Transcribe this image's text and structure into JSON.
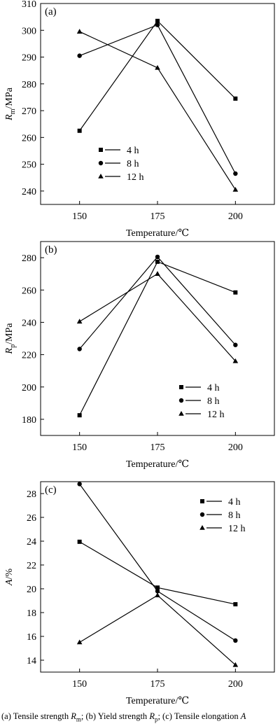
{
  "caption": {
    "a_text": "(a) Tensile strength ",
    "a_sym": "R",
    "a_sub": "m",
    "b_text": "; (b) Yield  strength ",
    "b_sym": "R",
    "b_sub": "p",
    "c_text": "; (c) Tensile elongation ",
    "c_sym": "A"
  },
  "chart_data": [
    {
      "type": "line",
      "panel_label": "(a)",
      "xlabel": "Temperature/℃",
      "ylabel_symbol": "R",
      "ylabel_sub": "m",
      "ylabel_unit": "/MPa",
      "x": [
        150,
        175,
        200
      ],
      "xticks": [
        "150",
        "175",
        "200"
      ],
      "ylim": [
        235,
        310
      ],
      "yticks": [
        240,
        250,
        260,
        270,
        280,
        290,
        300,
        310
      ],
      "legend_position": "lower-left",
      "series": [
        {
          "name": "4 h",
          "marker": "square",
          "values": [
            262.5,
            303.5,
            274.5
          ]
        },
        {
          "name": "8 h",
          "marker": "circle",
          "values": [
            290.5,
            302.0,
            246.5
          ]
        },
        {
          "name": "12 h",
          "marker": "triangle",
          "values": [
            299.5,
            286.0,
            240.5
          ]
        }
      ]
    },
    {
      "type": "line",
      "panel_label": "(b)",
      "xlabel": "Temperature/℃",
      "ylabel_symbol": "R",
      "ylabel_sub": "p",
      "ylabel_unit": "/MPa",
      "x": [
        150,
        175,
        200
      ],
      "xticks": [
        "150",
        "175",
        "200"
      ],
      "ylim": [
        170,
        290
      ],
      "yticks": [
        180,
        200,
        220,
        240,
        260,
        280
      ],
      "legend_position": "lower-right",
      "series": [
        {
          "name": "4 h",
          "marker": "square",
          "values": [
            182.5,
            277.5,
            258.5
          ]
        },
        {
          "name": "8 h",
          "marker": "circle",
          "values": [
            223.5,
            280.5,
            226.0
          ]
        },
        {
          "name": "12 h",
          "marker": "triangle",
          "values": [
            240.5,
            270.0,
            216.0
          ]
        }
      ]
    },
    {
      "type": "line",
      "panel_label": "(c)",
      "xlabel": "Temperature/℃",
      "ylabel_symbol": "A",
      "ylabel_sub": "",
      "ylabel_unit": "/%",
      "x": [
        150,
        175,
        200
      ],
      "xticks": [
        "150",
        "175",
        "200"
      ],
      "ylim": [
        13,
        29
      ],
      "yticks": [
        14,
        16,
        18,
        20,
        22,
        24,
        26,
        28
      ],
      "legend_position": "top-right",
      "series": [
        {
          "name": "4 h",
          "marker": "square",
          "values": [
            23.95,
            20.1,
            18.7
          ]
        },
        {
          "name": "8 h",
          "marker": "circle",
          "values": [
            28.8,
            19.8,
            15.65
          ]
        },
        {
          "name": "12 h",
          "marker": "triangle",
          "values": [
            15.5,
            19.45,
            13.6
          ]
        }
      ]
    }
  ]
}
